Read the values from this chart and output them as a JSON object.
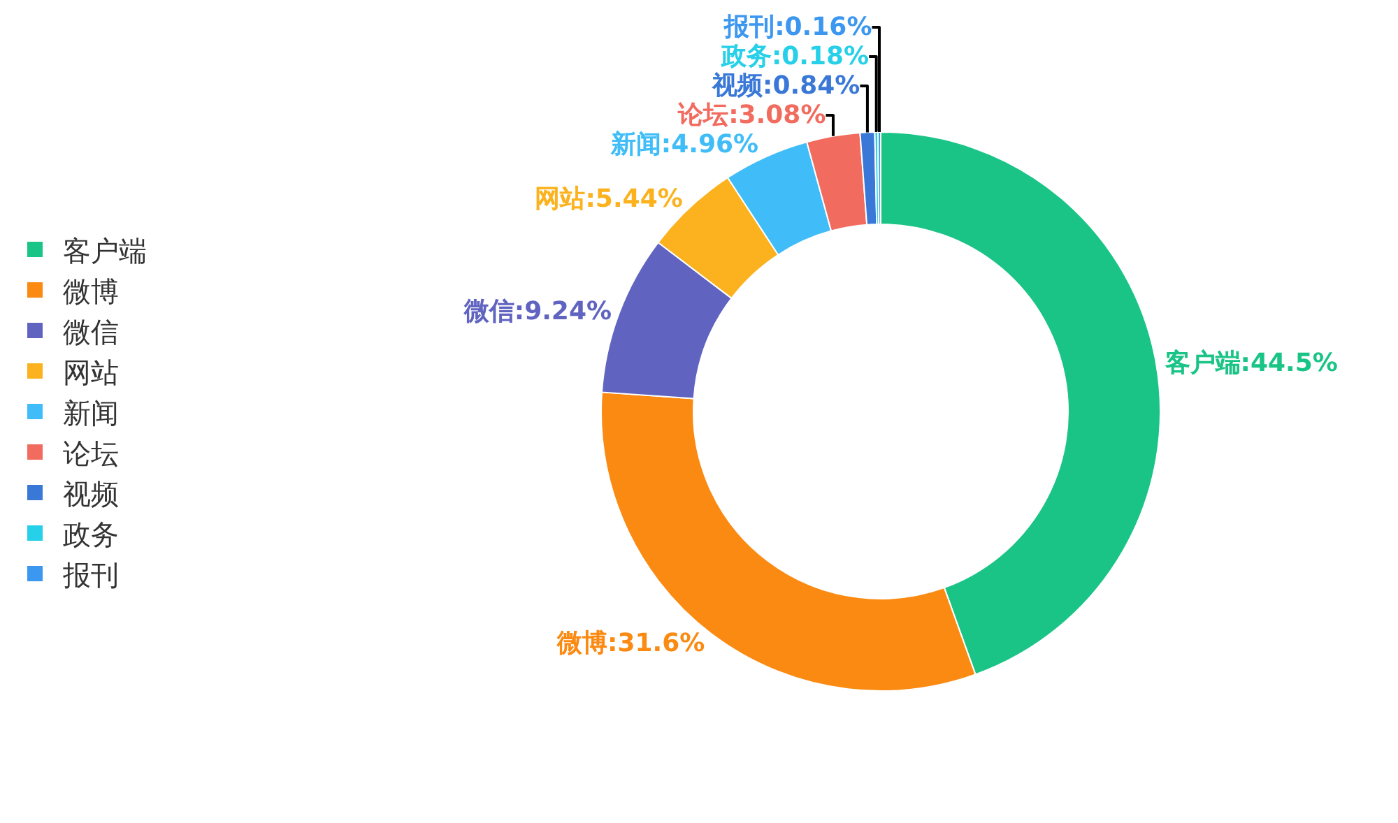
{
  "chart_data": {
    "type": "donut",
    "categories": [
      "客户端",
      "微博",
      "微信",
      "网站",
      "新闻",
      "论坛",
      "视频",
      "政务",
      "报刊"
    ],
    "values": [
      44.5,
      31.6,
      9.24,
      5.44,
      4.96,
      3.08,
      0.84,
      0.18,
      0.16
    ],
    "value_labels": [
      "客户端:44.5%",
      "微博:31.6%",
      "微信:9.24%",
      "网站:5.44%",
      "新闻:4.96%",
      "论坛:3.08%",
      "视频:0.84%",
      "政务:0.18%",
      "报刊:0.16%"
    ],
    "colors": [
      "#1ac486",
      "#fb8a12",
      "#6064c0",
      "#fbb21e",
      "#40bdf8",
      "#f26b5f",
      "#3a78d8",
      "#25d0e8",
      "#3c97f0"
    ],
    "legend": "left"
  }
}
